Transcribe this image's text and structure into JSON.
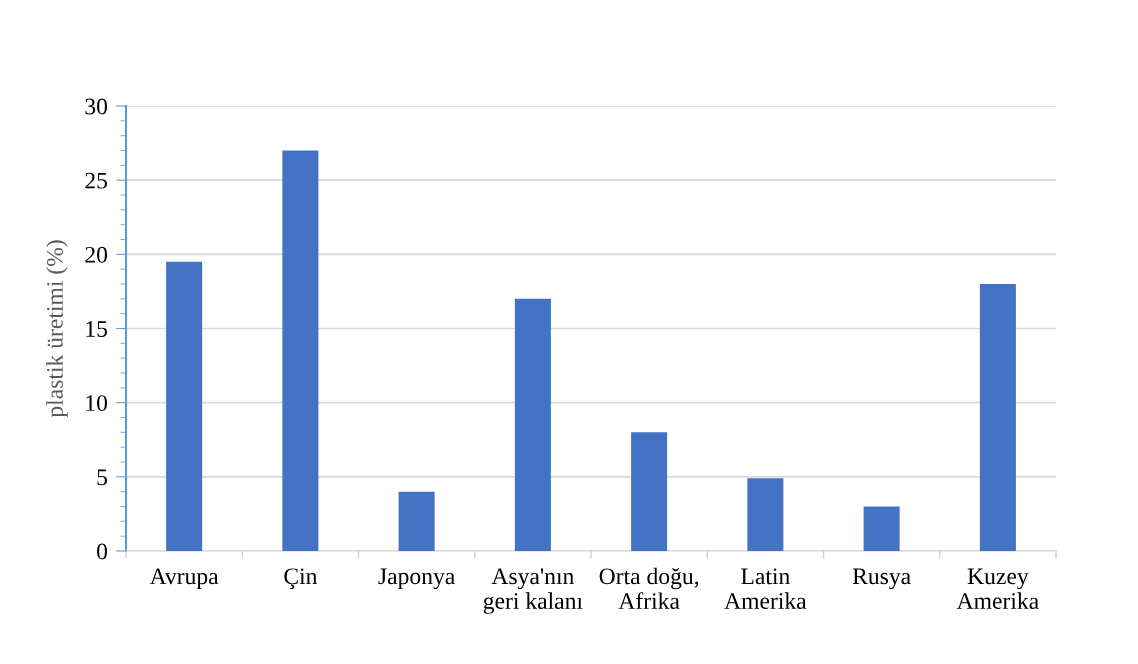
{
  "chart_data": {
    "type": "bar",
    "ylabel": "plastik üretimi (%)",
    "categories": [
      "Avrupa",
      "Çin",
      "Japonya",
      "Asya'nın\ngeri kalanı",
      "Orta doğu,\nAfrika",
      "Latin\nAmerika",
      "Rusya",
      "Kuzey\nAmerika"
    ],
    "values": [
      19.5,
      27,
      4,
      17,
      8,
      4.9,
      3,
      18
    ],
    "color": "#4472c4",
    "ylim": [
      0,
      30
    ],
    "yticks": [
      0,
      5,
      10,
      15,
      20,
      25,
      30
    ],
    "grid": "y"
  }
}
